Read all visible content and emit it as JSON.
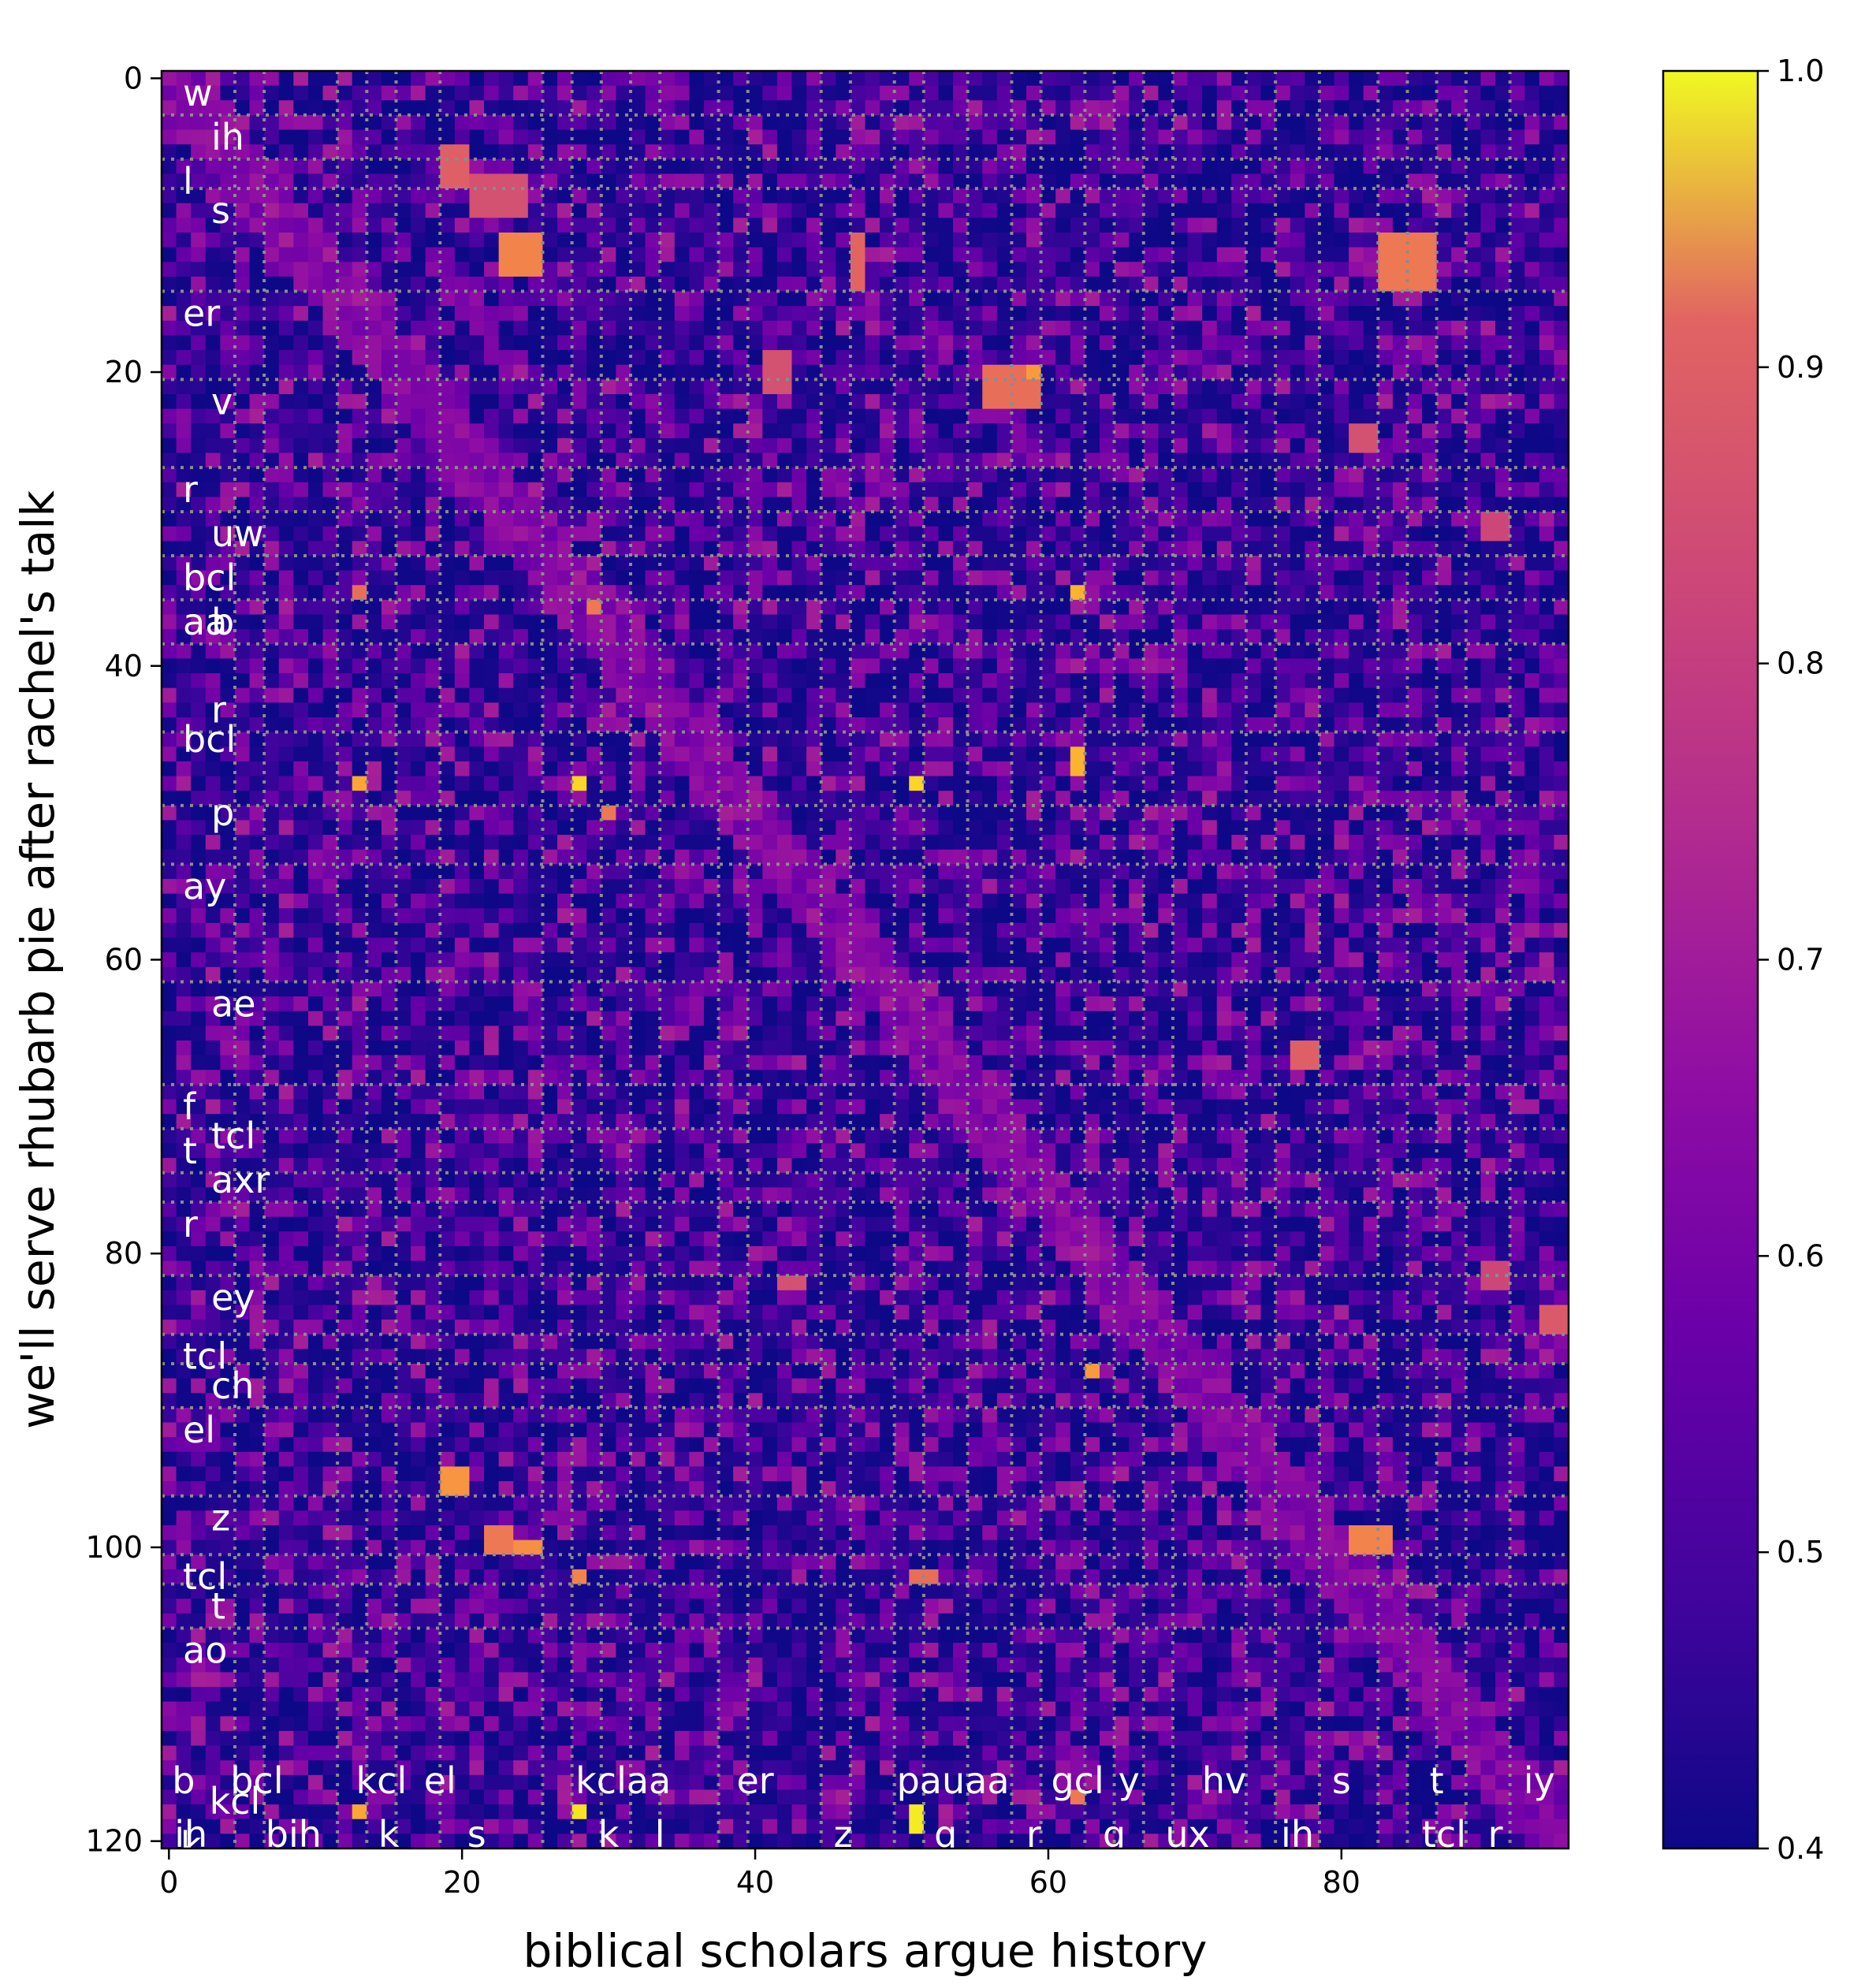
{
  "chart_data": {
    "type": "heatmap",
    "title": "",
    "xlabel": "biblical scholars argue history",
    "ylabel": "we'll serve rhubarb pie after rachel's talk",
    "xlim": [
      0,
      95
    ],
    "ylim": [
      120,
      0
    ],
    "n_cols": 96,
    "n_rows": 121,
    "x_ticks": [
      0,
      20,
      40,
      60,
      80
    ],
    "y_ticks": [
      0,
      20,
      40,
      60,
      80,
      100,
      120
    ],
    "colormap": "plasma",
    "colorbar": {
      "min": 0.4,
      "max": 1.0,
      "ticks": [
        "0.4",
        "0.5",
        "0.6",
        "0.7",
        "0.8",
        "0.9",
        "1.0"
      ]
    },
    "grid_color": "#8c8c8c",
    "x_boundaries": [
      5,
      7,
      12,
      14,
      16,
      19,
      26,
      28,
      30,
      32,
      34,
      38,
      40,
      45,
      47,
      50,
      52,
      55,
      58,
      60,
      63,
      65,
      67,
      69,
      74,
      76,
      79,
      83,
      85,
      87,
      89,
      92
    ],
    "y_boundaries": [
      3,
      6,
      8,
      15,
      21,
      27,
      30,
      33,
      36,
      39,
      45,
      50,
      54,
      62,
      69,
      72,
      75,
      77,
      82,
      86,
      88,
      91,
      97,
      101,
      103,
      106
    ],
    "x_phones": [
      {
        "label": "b",
        "x": 1,
        "row": "top"
      },
      {
        "label": "ih",
        "x": 1.5,
        "row": "bottom"
      },
      {
        "label": "k",
        "x": 1.5,
        "row": "overlap"
      },
      {
        "label": "bcl",
        "x": 6,
        "row": "top"
      },
      {
        "label": "kcl",
        "x": 4.5,
        "row": "middle"
      },
      {
        "label": "bih",
        "x": 8.5,
        "row": "bottom"
      },
      {
        "label": "kcl",
        "x": 14.5,
        "row": "top"
      },
      {
        "label": "k",
        "x": 15,
        "row": "bottom"
      },
      {
        "label": "el",
        "x": 18.5,
        "row": "top"
      },
      {
        "label": "s",
        "x": 21,
        "row": "bottom"
      },
      {
        "label": "kclaa",
        "x": 31,
        "row": "top"
      },
      {
        "label": "k",
        "x": 30,
        "row": "bottom"
      },
      {
        "label": "l",
        "x": 33.5,
        "row": "bottom"
      },
      {
        "label": "er",
        "x": 40,
        "row": "top"
      },
      {
        "label": "z",
        "x": 46,
        "row": "bottom"
      },
      {
        "label": "pauaa",
        "x": 53.5,
        "row": "top"
      },
      {
        "label": "q",
        "x": 53,
        "row": "bottom"
      },
      {
        "label": "r",
        "x": 59,
        "row": "bottom"
      },
      {
        "label": "gcl",
        "x": 62,
        "row": "top"
      },
      {
        "label": "y",
        "x": 65.5,
        "row": "top"
      },
      {
        "label": "g",
        "x": 64.5,
        "row": "bottom"
      },
      {
        "label": "ux",
        "x": 69.5,
        "row": "bottom"
      },
      {
        "label": "hv",
        "x": 72,
        "row": "top"
      },
      {
        "label": "ih",
        "x": 77,
        "row": "bottom"
      },
      {
        "label": "s",
        "x": 80,
        "row": "top"
      },
      {
        "label": "t",
        "x": 86.5,
        "row": "top"
      },
      {
        "label": "tcl",
        "x": 87,
        "row": "bottom"
      },
      {
        "label": "r",
        "x": 90.5,
        "row": "bottom"
      },
      {
        "label": "iy",
        "x": 93.5,
        "row": "top"
      }
    ],
    "y_phones": [
      {
        "label": "w",
        "y": 1,
        "col": 1
      },
      {
        "label": "ih",
        "y": 4,
        "col": 2
      },
      {
        "label": "l",
        "y": 7,
        "col": 1
      },
      {
        "label": "s",
        "y": 9,
        "col": 2
      },
      {
        "label": "er",
        "y": 16,
        "col": 1
      },
      {
        "label": "v",
        "y": 22,
        "col": 2
      },
      {
        "label": "r",
        "y": 28,
        "col": 1
      },
      {
        "label": "uw",
        "y": 31,
        "col": 2
      },
      {
        "label": "bcl",
        "y": 34,
        "col": 1
      },
      {
        "label": "aa",
        "y": 37,
        "col": 1
      },
      {
        "label": "b",
        "y": 37,
        "col": 2
      },
      {
        "label": "r",
        "y": 43,
        "col": 2
      },
      {
        "label": "bcl",
        "y": 45,
        "col": 1
      },
      {
        "label": "p",
        "y": 50,
        "col": 2
      },
      {
        "label": "ay",
        "y": 55,
        "col": 1
      },
      {
        "label": "ae",
        "y": 63,
        "col": 2
      },
      {
        "label": "f",
        "y": 70,
        "col": 1
      },
      {
        "label": "tcl",
        "y": 72,
        "col": 2
      },
      {
        "label": "t",
        "y": 73,
        "col": 1
      },
      {
        "label": "axr",
        "y": 75,
        "col": 2
      },
      {
        "label": "r",
        "y": 78,
        "col": 1
      },
      {
        "label": "ey",
        "y": 83,
        "col": 2
      },
      {
        "label": "tcl",
        "y": 87,
        "col": 1
      },
      {
        "label": "ch",
        "y": 89,
        "col": 2
      },
      {
        "label": "el",
        "y": 92,
        "col": 1
      },
      {
        "label": "z",
        "y": 98,
        "col": 2
      },
      {
        "label": "tcl",
        "y": 102,
        "col": 1
      },
      {
        "label": "t",
        "y": 104,
        "col": 2
      },
      {
        "label": "ao",
        "y": 107,
        "col": 1
      }
    ],
    "hotspots": [
      {
        "x": 19,
        "y": 5,
        "w": 2,
        "h": 3,
        "v": 0.75
      },
      {
        "x": 21,
        "y": 7,
        "w": 4,
        "h": 3,
        "v": 0.72
      },
      {
        "x": 23,
        "y": 11,
        "w": 3,
        "h": 3,
        "v": 0.82
      },
      {
        "x": 47,
        "y": 11,
        "w": 1,
        "h": 4,
        "v": 0.76
      },
      {
        "x": 83,
        "y": 11,
        "w": 4,
        "h": 4,
        "v": 0.8
      },
      {
        "x": 41,
        "y": 19,
        "w": 2,
        "h": 3,
        "v": 0.72
      },
      {
        "x": 56,
        "y": 20,
        "w": 4,
        "h": 3,
        "v": 0.78
      },
      {
        "x": 59,
        "y": 20,
        "w": 1,
        "h": 1,
        "v": 0.86
      },
      {
        "x": 81,
        "y": 24,
        "w": 2,
        "h": 2,
        "v": 0.72
      },
      {
        "x": 90,
        "y": 30,
        "w": 2,
        "h": 2,
        "v": 0.7
      },
      {
        "x": 13,
        "y": 35,
        "w": 1,
        "h": 1,
        "v": 0.78
      },
      {
        "x": 62,
        "y": 35,
        "w": 1,
        "h": 1,
        "v": 0.9
      },
      {
        "x": 29,
        "y": 36,
        "w": 1,
        "h": 1,
        "v": 0.8
      },
      {
        "x": 13,
        "y": 48,
        "w": 1,
        "h": 1,
        "v": 0.88
      },
      {
        "x": 28,
        "y": 48,
        "w": 1,
        "h": 1,
        "v": 0.95
      },
      {
        "x": 51,
        "y": 48,
        "w": 1,
        "h": 1,
        "v": 0.95
      },
      {
        "x": 62,
        "y": 46,
        "w": 1,
        "h": 2,
        "v": 0.9
      },
      {
        "x": 30,
        "y": 50,
        "w": 1,
        "h": 1,
        "v": 0.8
      },
      {
        "x": 77,
        "y": 66,
        "w": 2,
        "h": 2,
        "v": 0.75
      },
      {
        "x": 42,
        "y": 82,
        "w": 2,
        "h": 1,
        "v": 0.72
      },
      {
        "x": 90,
        "y": 81,
        "w": 2,
        "h": 2,
        "v": 0.7
      },
      {
        "x": 94,
        "y": 84,
        "w": 2,
        "h": 2,
        "v": 0.74
      },
      {
        "x": 63,
        "y": 88,
        "w": 1,
        "h": 1,
        "v": 0.86
      },
      {
        "x": 19,
        "y": 95,
        "w": 2,
        "h": 2,
        "v": 0.85
      },
      {
        "x": 22,
        "y": 99,
        "w": 2,
        "h": 2,
        "v": 0.8
      },
      {
        "x": 24,
        "y": 100,
        "w": 2,
        "h": 1,
        "v": 0.84
      },
      {
        "x": 81,
        "y": 99,
        "w": 3,
        "h": 2,
        "v": 0.82
      },
      {
        "x": 28,
        "y": 102,
        "w": 1,
        "h": 1,
        "v": 0.82
      },
      {
        "x": 51,
        "y": 102,
        "w": 2,
        "h": 1,
        "v": 0.78
      },
      {
        "x": 13,
        "y": 118,
        "w": 1,
        "h": 1,
        "v": 0.88
      },
      {
        "x": 28,
        "y": 118,
        "w": 1,
        "h": 1,
        "v": 0.97
      },
      {
        "x": 51,
        "y": 118,
        "w": 1,
        "h": 2,
        "v": 0.98
      },
      {
        "x": 62,
        "y": 117,
        "w": 1,
        "h": 1,
        "v": 0.8
      }
    ]
  }
}
